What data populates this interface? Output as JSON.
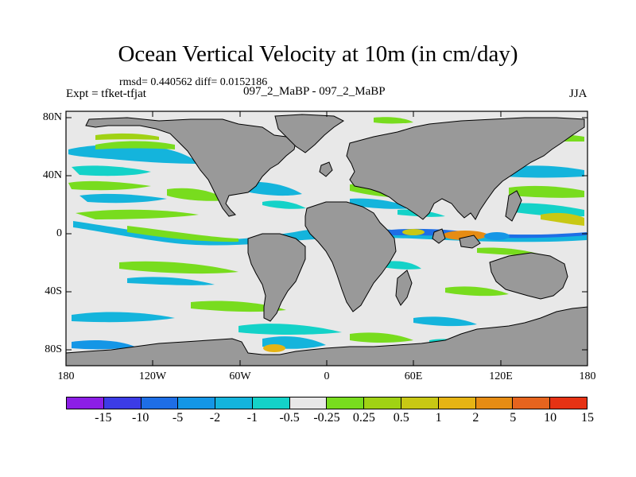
{
  "title": "Ocean Vertical Velocity at 10m (in cm/day)",
  "stats": "rmsd= 0.440562 diff= 0.0152186",
  "left_label": "Expt = tfket-tfjat",
  "center_label": "097_2_MaBP - 097_2_MaBP",
  "right_label": "JJA",
  "y_ticks": [
    "80N",
    "40N",
    "0",
    "40S",
    "80S"
  ],
  "x_ticks": [
    "180",
    "120W",
    "60W",
    "0",
    "60E",
    "120E",
    "180"
  ],
  "colorbar": {
    "colors": [
      "#8c1ee6",
      "#3c3ce6",
      "#1e6ee6",
      "#1496e6",
      "#14b4dc",
      "#14d2c8",
      "#e8e8e8",
      "#78dc1e",
      "#a0d214",
      "#c8c814",
      "#e6b414",
      "#e68c14",
      "#e6641e",
      "#e63214"
    ],
    "labels": [
      "-15",
      "-10",
      "-5",
      "-2",
      "-1",
      "-0.5",
      "-0.25",
      "0.25",
      "0.5",
      "1",
      "2",
      "5",
      "10",
      "15"
    ]
  },
  "map": {
    "background_color": "#e8e8e8",
    "land_color": "#999999"
  }
}
